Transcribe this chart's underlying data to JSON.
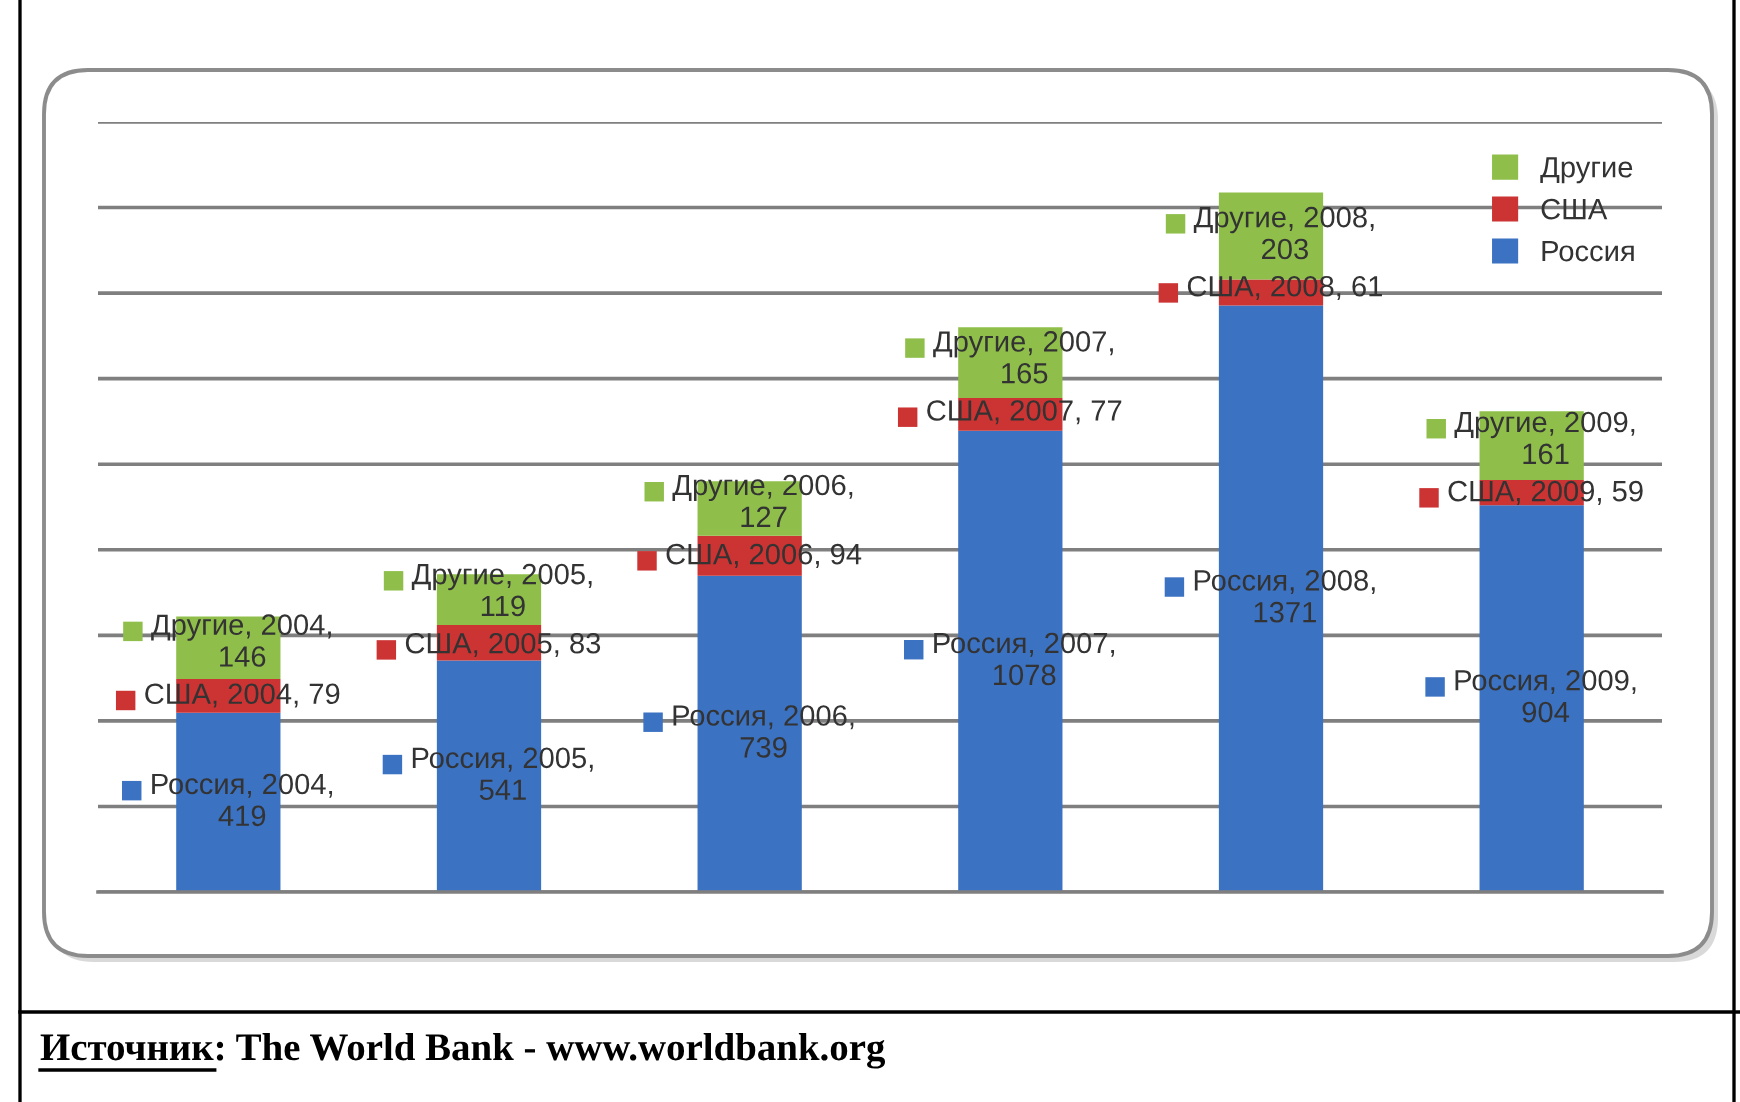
{
  "chart_data": {
    "type": "bar",
    "stacked": true,
    "categories": [
      null,
      null,
      null,
      null,
      null,
      null
    ],
    "series": [
      {
        "name": "Россия",
        "color": "#3c72c2",
        "values": [
          419,
          541,
          739,
          1078,
          1371,
          904
        ],
        "value_labels": [
          "Россия, 2004,\n419",
          "Россия, 2005,\n541",
          "Россия, 2006,\n739",
          "Россия, 2007,\n1078",
          "Россия, 2008,\n1371",
          "Россия, 2009,\n904"
        ]
      },
      {
        "name": "США",
        "color": "#cc3333",
        "values": [
          79,
          83,
          94,
          77,
          61,
          59
        ],
        "value_labels": [
          "США, 2004, 79",
          "США, 2005, 83",
          "США, 2006, 94",
          "США, 2007, 77",
          "США, 2008, 61",
          "США, 2009, 59"
        ]
      },
      {
        "name": "Другие",
        "color": "#8fbf4a",
        "values": [
          146,
          119,
          127,
          165,
          203,
          161
        ],
        "value_labels": [
          "Другие, 2004,\n146",
          "Другие, 2005,\n119",
          "Другие, 2006,\n127",
          "Другие, 2007,\n165",
          "Другие, 2008,\n203",
          "Другие, 2009,\n161"
        ]
      }
    ],
    "ylim": [
      0,
      1800
    ],
    "yticks": [
      {
        "value": 0,
        "label": null
      },
      {
        "value": 200,
        "label": null
      },
      {
        "value": 400,
        "label": null
      },
      {
        "value": 600,
        "label": null
      },
      {
        "value": 800,
        "label": null
      },
      {
        "value": 1000,
        "label": null
      },
      {
        "value": 1200,
        "label": null
      },
      {
        "value": 1400,
        "label": null
      },
      {
        "value": 1600,
        "label": null
      },
      {
        "value": 1800,
        "label": null
      }
    ],
    "grid": "y",
    "legend": "top right",
    "annotations": [
      "Источник: The World Bank - www.worldbank.org"
    ]
  }
}
